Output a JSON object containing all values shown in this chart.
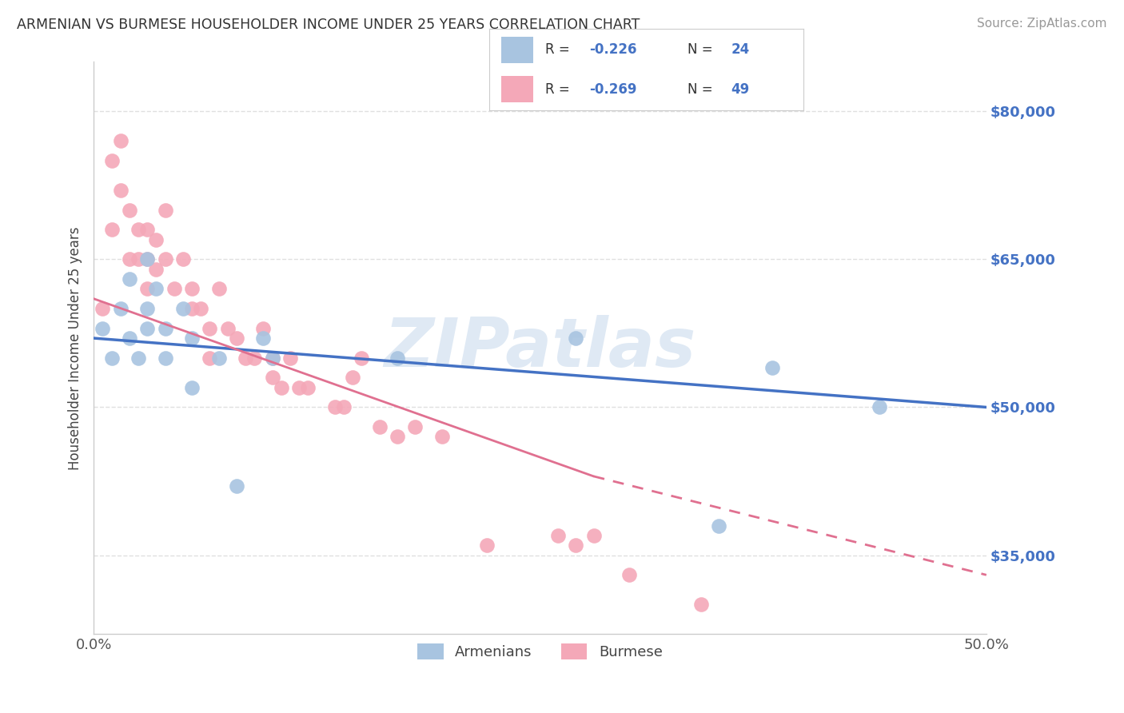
{
  "title": "ARMENIAN VS BURMESE HOUSEHOLDER INCOME UNDER 25 YEARS CORRELATION CHART",
  "source": "Source: ZipAtlas.com",
  "ylabel": "Householder Income Under 25 years",
  "ytick_labels": [
    "$35,000",
    "$50,000",
    "$65,000",
    "$80,000"
  ],
  "ytick_values": [
    35000,
    50000,
    65000,
    80000
  ],
  "ylim": [
    27000,
    85000
  ],
  "xlim": [
    0.0,
    0.5
  ],
  "armenian_R": "-0.226",
  "armenian_N": "24",
  "burmese_R": "-0.269",
  "burmese_N": "49",
  "armenian_color": "#a8c4e0",
  "burmese_color": "#f4a8b8",
  "armenian_line_color": "#4472c4",
  "burmese_line_color": "#e07090",
  "background_color": "#ffffff",
  "grid_color": "#e0e0e0",
  "watermark": "ZIPatlas",
  "armenian_x": [
    0.005,
    0.01,
    0.015,
    0.02,
    0.02,
    0.025,
    0.03,
    0.03,
    0.03,
    0.035,
    0.04,
    0.04,
    0.05,
    0.055,
    0.055,
    0.07,
    0.08,
    0.095,
    0.1,
    0.17,
    0.27,
    0.35,
    0.38,
    0.44
  ],
  "armenian_y": [
    58000,
    55000,
    60000,
    63000,
    57000,
    55000,
    65000,
    60000,
    58000,
    62000,
    58000,
    55000,
    60000,
    57000,
    52000,
    55000,
    42000,
    57000,
    55000,
    55000,
    57000,
    38000,
    54000,
    50000
  ],
  "burmese_x": [
    0.005,
    0.01,
    0.01,
    0.015,
    0.015,
    0.02,
    0.02,
    0.025,
    0.025,
    0.03,
    0.03,
    0.03,
    0.035,
    0.035,
    0.04,
    0.04,
    0.045,
    0.05,
    0.055,
    0.055,
    0.06,
    0.065,
    0.065,
    0.07,
    0.075,
    0.08,
    0.085,
    0.09,
    0.095,
    0.1,
    0.1,
    0.105,
    0.11,
    0.115,
    0.12,
    0.135,
    0.14,
    0.145,
    0.15,
    0.16,
    0.17,
    0.18,
    0.195,
    0.22,
    0.26,
    0.27,
    0.28,
    0.3,
    0.34
  ],
  "burmese_y": [
    60000,
    75000,
    68000,
    77000,
    72000,
    70000,
    65000,
    68000,
    65000,
    68000,
    65000,
    62000,
    67000,
    64000,
    70000,
    65000,
    62000,
    65000,
    62000,
    60000,
    60000,
    58000,
    55000,
    62000,
    58000,
    57000,
    55000,
    55000,
    58000,
    55000,
    53000,
    52000,
    55000,
    52000,
    52000,
    50000,
    50000,
    53000,
    55000,
    48000,
    47000,
    48000,
    47000,
    36000,
    37000,
    36000,
    37000,
    33000,
    30000
  ]
}
